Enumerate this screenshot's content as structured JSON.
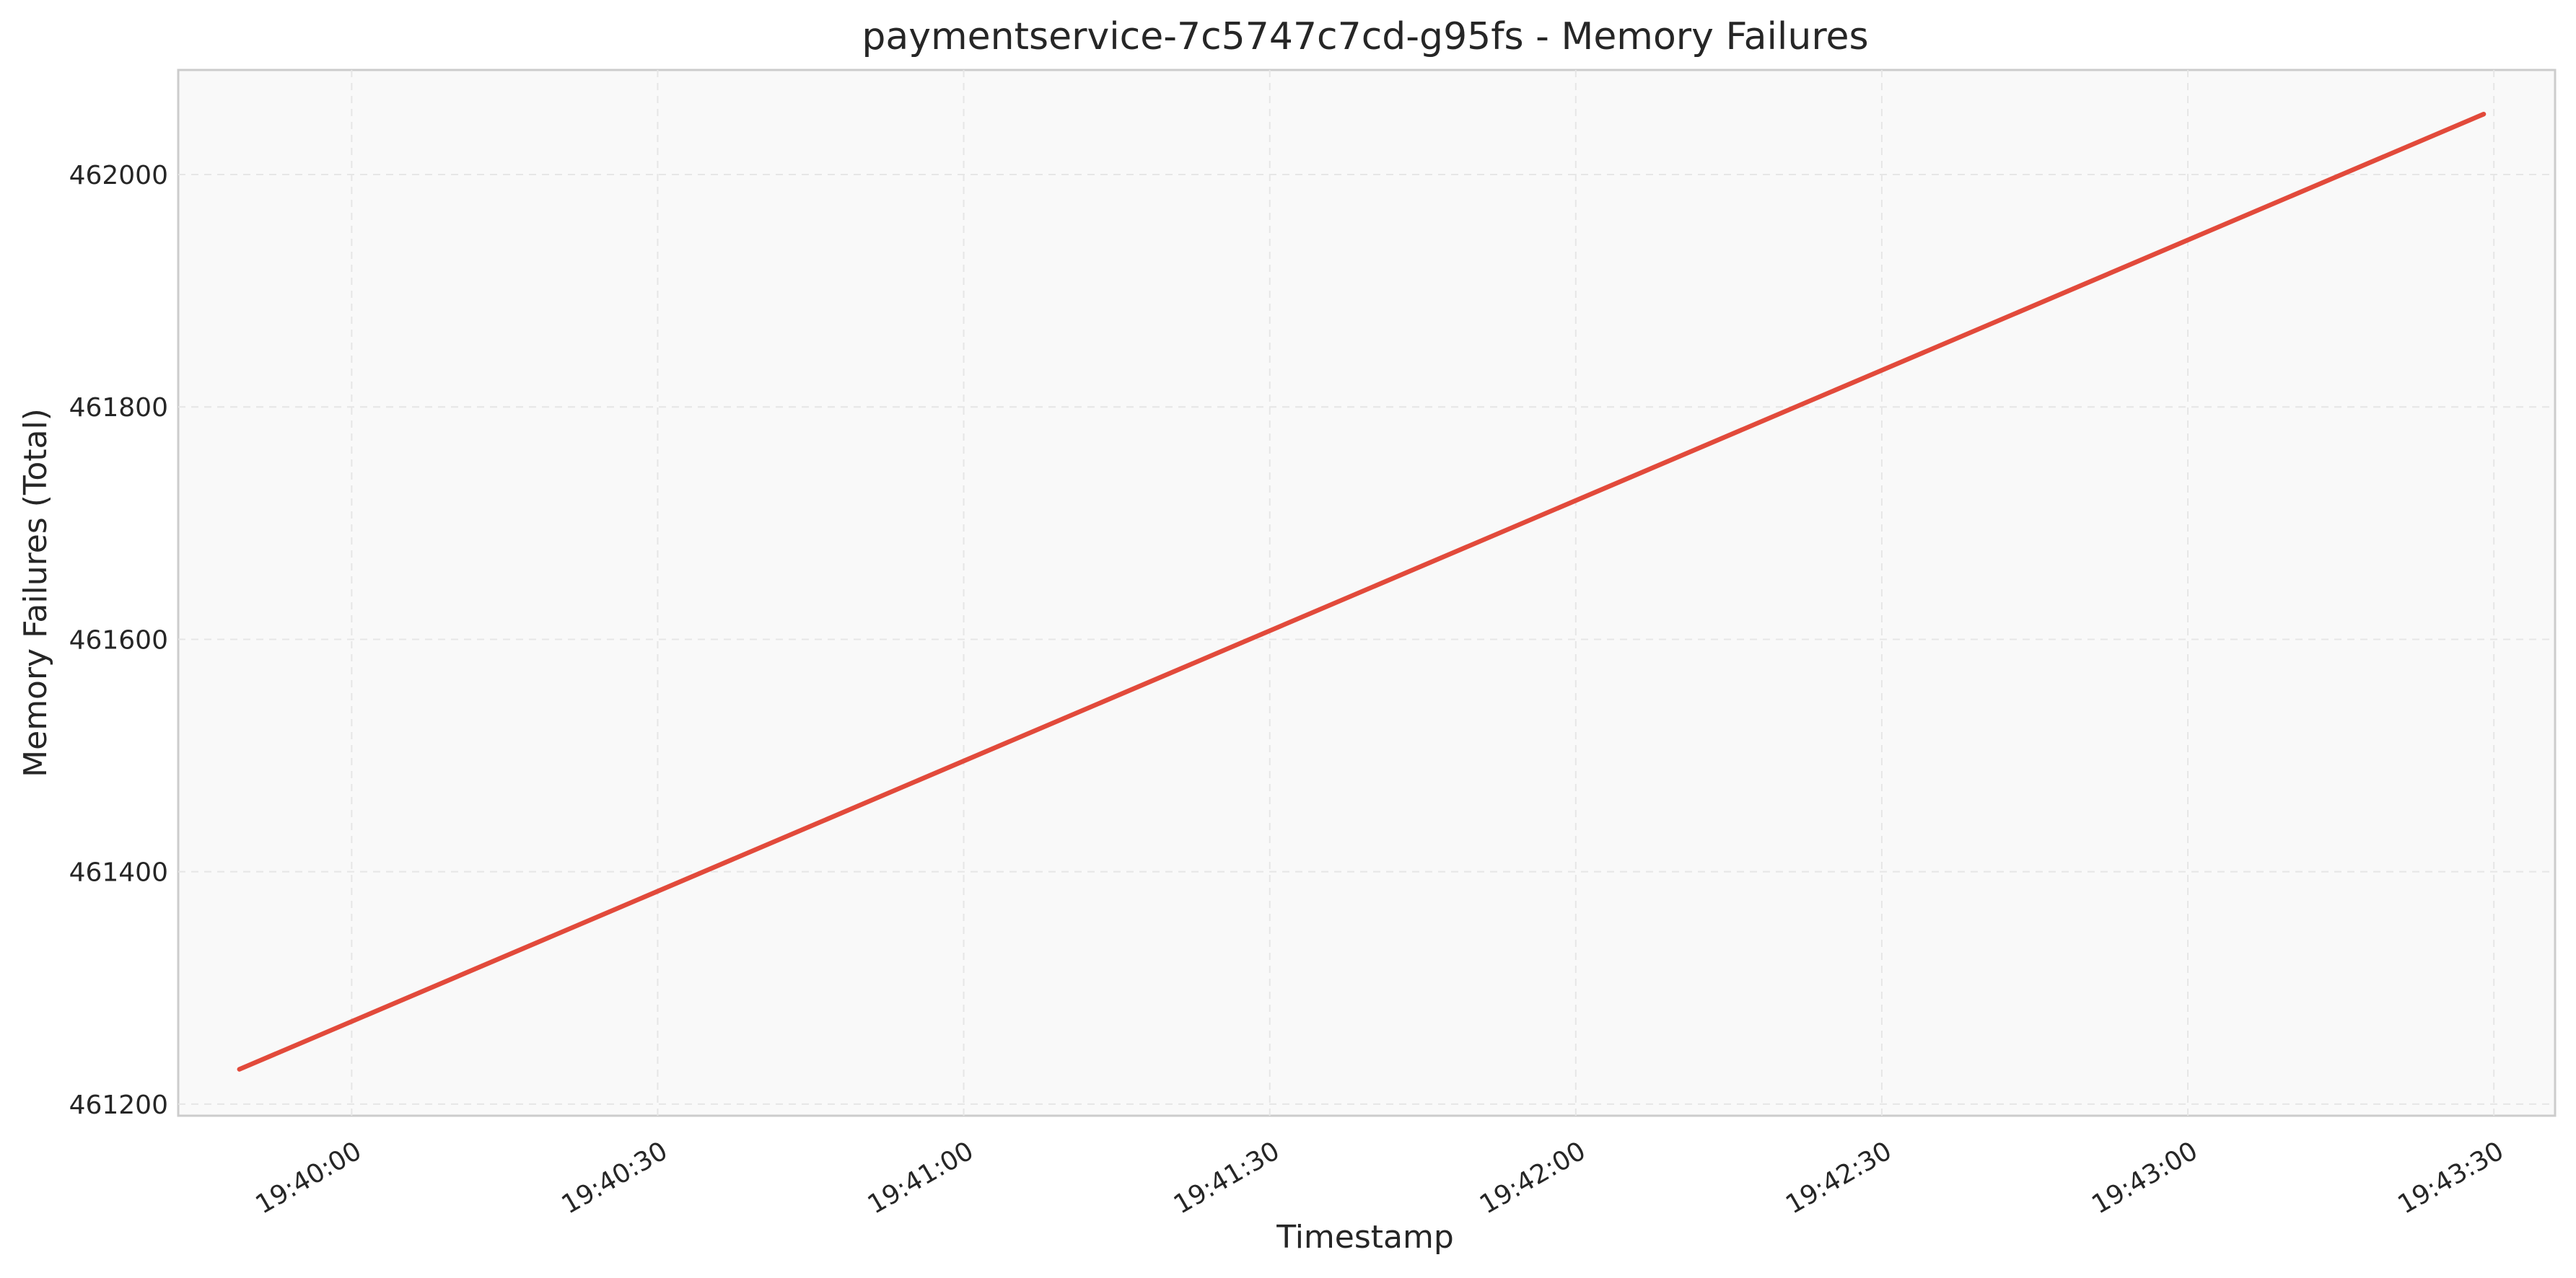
{
  "chart_data": {
    "type": "line",
    "title": "paymentservice-7c5747c7cd-g95fs - Memory Failures",
    "xlabel": "Timestamp",
    "ylabel": "Memory Failures (Total)",
    "x_tick_labels": [
      "19:40:00",
      "19:40:30",
      "19:41:00",
      "19:41:30",
      "19:42:00",
      "19:42:30",
      "19:43:00",
      "19:43:30"
    ],
    "y_tick_labels": [
      "461200",
      "461400",
      "461600",
      "461800",
      "462000"
    ],
    "xlim": [
      "19:39:43",
      "19:43:36"
    ],
    "ylim": [
      461190,
      462090
    ],
    "grid": true,
    "series": [
      {
        "color": "#e24a3b",
        "x": [
          "19:39:49",
          "19:43:29"
        ],
        "y": [
          461230,
          462052
        ]
      }
    ]
  }
}
